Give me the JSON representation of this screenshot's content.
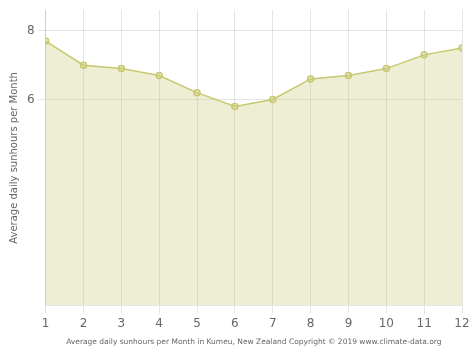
{
  "chart_data": {
    "type": "area",
    "x": [
      1,
      2,
      3,
      4,
      5,
      6,
      7,
      8,
      9,
      10,
      11,
      12
    ],
    "values": [
      7.7,
      7.0,
      6.9,
      6.7,
      6.2,
      5.8,
      6.0,
      6.6,
      6.7,
      6.9,
      7.3,
      7.5
    ],
    "color": "#C8C870",
    "marker": "circle",
    "xlabel": "Average daily sunhours per Month in Kumeu, New Zealand Copyright © 2019 www.climate-data.org",
    "ylabel": "Average daily sunhours per Month",
    "xlim": [
      1,
      12
    ],
    "ylim": [
      0,
      8.6
    ],
    "xticks": [
      1,
      2,
      3,
      4,
      5,
      6,
      7,
      8,
      9,
      10,
      11,
      12
    ],
    "yticks": [
      6,
      8
    ],
    "grid": true
  }
}
